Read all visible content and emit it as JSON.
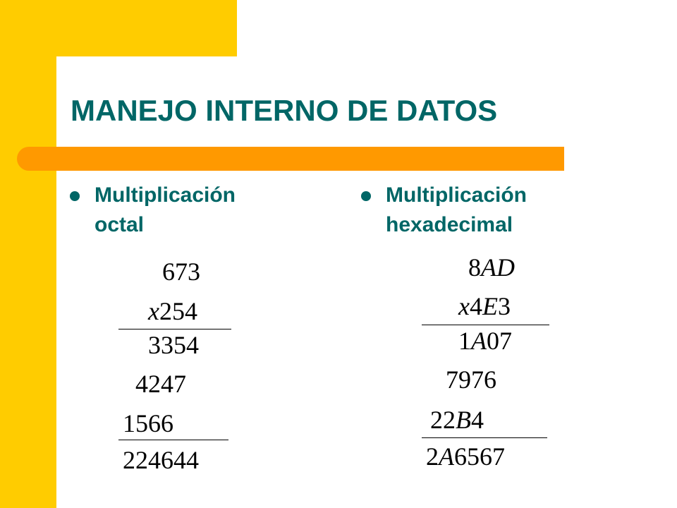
{
  "title": "MANEJO INTERNO DE DATOS",
  "bullets": {
    "left": {
      "line1": "Multiplicación",
      "line2": "octal"
    },
    "right": {
      "line1": "Multiplicación",
      "line2": "hexadecimal"
    }
  },
  "octal": {
    "multiplicand": "673",
    "multiplier_prefix": "x",
    "multiplier": "254",
    "partial1": "3354",
    "partial2": "4247",
    "partial3": "1566",
    "result": "224644"
  },
  "hex": {
    "multiplicand_num": "8",
    "multiplicand_letters": "AD",
    "multiplier_x": "x",
    "multiplier_4": "4",
    "multiplier_E": "E",
    "multiplier_3": "3",
    "partial1_1": "1",
    "partial1_A": "A",
    "partial1_rest": "07",
    "partial2": "7976",
    "partial3_num": "22",
    "partial3_B": "B",
    "partial3_rest": "4",
    "result_2": "2",
    "result_A": "A",
    "result_rest": "6567"
  },
  "colors": {
    "yellow": "#FFCC00",
    "orange": "#FF9900",
    "teal": "#006666"
  }
}
